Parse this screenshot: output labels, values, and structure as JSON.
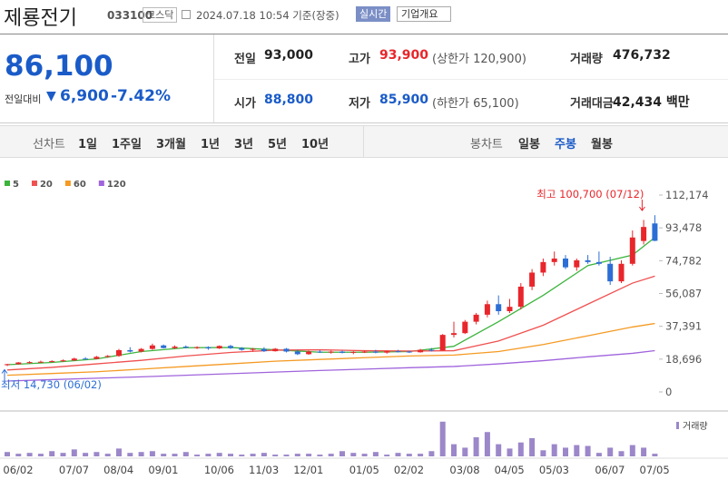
{
  "header": {
    "name": "제룡전기",
    "code": "033100",
    "market": "코스닥",
    "datetime": "2024.07.18 10:54 기준(장중)",
    "realtime": "실시간",
    "company": "기업개요"
  },
  "quote": {
    "price": "86,100",
    "change_label": "전일대비",
    "change": "6,900",
    "change_pct": "-7.42%",
    "rows": [
      [
        {
          "label": "전일",
          "value": "93,000"
        },
        {
          "label": "고가",
          "value": "93,900",
          "note": "(상한가 120,900)"
        },
        {
          "label": "거래량",
          "value": "476,732"
        }
      ],
      [
        {
          "label": "시가",
          "value": "88,800"
        },
        {
          "label": "저가",
          "value": "85,900",
          "note": "(하한가 65,100)"
        },
        {
          "label": "거래대금",
          "value": "42,434 백만"
        }
      ]
    ]
  },
  "nav": {
    "line_label": "선차트",
    "line_periods": [
      "1일",
      "1주일",
      "3개월",
      "1년",
      "3년",
      "5년",
      "10년"
    ],
    "candle_label": "봉차트",
    "candle_periods": [
      "일봉",
      "주봉",
      "월봉"
    ],
    "selected": "주봉"
  },
  "chart_data": {
    "type": "candlestick",
    "categories": [
      "06/02",
      null,
      null,
      null,
      null,
      "07/07",
      null,
      null,
      null,
      "08/04",
      null,
      null,
      null,
      "09/01",
      null,
      null,
      null,
      null,
      "10/06",
      null,
      null,
      null,
      "11/03",
      null,
      null,
      null,
      "12/01",
      null,
      null,
      null,
      null,
      "01/05",
      null,
      null,
      null,
      "02/02",
      null,
      null,
      null,
      null,
      "03/08",
      null,
      null,
      null,
      "04/05",
      null,
      null,
      null,
      "05/03",
      null,
      null,
      null,
      null,
      "06/07",
      null,
      null,
      null,
      "07/05",
      null
    ],
    "open": [
      15500,
      15800,
      16800,
      17000,
      17200,
      17600,
      18000,
      19000,
      18800,
      20000,
      20500,
      23800,
      23000,
      24500,
      26500,
      25000,
      25800,
      25200,
      25500,
      24800,
      26200,
      25000,
      24000,
      24500,
      23200,
      24600,
      23000,
      21500,
      23000,
      22500,
      23000,
      22300,
      22800,
      23000,
      22400,
      23200,
      23000,
      22600,
      24000,
      23600,
      32500,
      33500,
      40000,
      44000,
      50000,
      46000,
      48500,
      60000,
      68000,
      74000,
      76000,
      71000,
      75000,
      74000,
      73000,
      63000,
      73000,
      86000,
      96000
    ],
    "high": [
      16000,
      17000,
      17500,
      17800,
      18000,
      18500,
      19500,
      19800,
      20500,
      21000,
      24500,
      25500,
      25000,
      27500,
      27000,
      26500,
      26500,
      26000,
      26000,
      26500,
      26800,
      25500,
      25000,
      25500,
      25000,
      25000,
      24000,
      23500,
      23800,
      23500,
      23500,
      23200,
      23500,
      24000,
      23500,
      24000,
      23500,
      24500,
      25000,
      33000,
      40000,
      41000,
      45000,
      52000,
      55000,
      53000,
      62000,
      70000,
      76000,
      80000,
      78000,
      76000,
      78000,
      80000,
      77000,
      75000,
      92000,
      98000,
      100700
    ],
    "low": [
      14730,
      15600,
      16200,
      16600,
      16800,
      17200,
      17600,
      18500,
      18600,
      19500,
      20000,
      22500,
      22500,
      24000,
      24800,
      24500,
      24800,
      24500,
      24000,
      24500,
      24500,
      23500,
      23000,
      22800,
      23000,
      22500,
      21000,
      21200,
      22200,
      21800,
      22000,
      21500,
      22200,
      22000,
      21800,
      22500,
      22200,
      22400,
      23000,
      23500,
      31000,
      33000,
      38500,
      42500,
      44000,
      45000,
      47000,
      58000,
      66000,
      72000,
      70000,
      69000,
      73000,
      72000,
      61000,
      62000,
      72000,
      84000,
      85900
    ],
    "close": [
      15800,
      16800,
      17000,
      17200,
      17600,
      18000,
      19000,
      18800,
      20000,
      20500,
      23800,
      23000,
      24500,
      26500,
      25000,
      25800,
      25200,
      25500,
      24800,
      26200,
      25000,
      24000,
      24500,
      23200,
      24600,
      23000,
      21500,
      23000,
      22500,
      23000,
      22300,
      22800,
      23000,
      22400,
      23200,
      23000,
      22600,
      24000,
      23600,
      32500,
      33500,
      40000,
      44000,
      50000,
      46000,
      48500,
      60000,
      68000,
      74000,
      76000,
      71000,
      75000,
      74000,
      73000,
      63000,
      73000,
      88000,
      94000,
      86100
    ],
    "up_color": "#e8262b",
    "down_color": "#2c6ed5",
    "series": [
      {
        "name": "5",
        "color": "#3cb43c",
        "x": [
          0,
          4,
          8,
          12,
          16,
          20,
          24,
          28,
          32,
          36,
          40,
          44,
          48,
          52,
          56,
          58
        ],
        "values": [
          15500,
          16800,
          18800,
          23000,
          25200,
          25300,
          24000,
          22600,
          22600,
          23000,
          26000,
          40000,
          55000,
          72000,
          78000,
          88000
        ]
      },
      {
        "name": "20",
        "color": "#f05050",
        "x": [
          0,
          4,
          8,
          12,
          16,
          20,
          24,
          28,
          32,
          36,
          40,
          44,
          48,
          52,
          56,
          58
        ],
        "values": [
          12500,
          14000,
          16000,
          18000,
          20500,
          22500,
          23800,
          24000,
          23500,
          23300,
          23500,
          29000,
          38000,
          50000,
          62000,
          66000
        ]
      },
      {
        "name": "60",
        "color": "#f59a23",
        "x": [
          0,
          4,
          8,
          12,
          16,
          20,
          24,
          28,
          32,
          36,
          40,
          44,
          48,
          52,
          56,
          58
        ],
        "values": [
          9500,
          10500,
          11500,
          13000,
          14500,
          16000,
          17500,
          18500,
          19500,
          20500,
          21000,
          23000,
          27000,
          32000,
          37000,
          39000
        ]
      },
      {
        "name": "120",
        "color": "#a064dc",
        "x": [
          0,
          4,
          8,
          12,
          16,
          20,
          24,
          28,
          32,
          36,
          40,
          44,
          48,
          52,
          56,
          58
        ],
        "values": [
          6200,
          7000,
          7800,
          8600,
          9500,
          10400,
          11300,
          12200,
          13000,
          13800,
          14500,
          16000,
          17800,
          20000,
          22000,
          23500
        ]
      }
    ],
    "ylim": [
      0,
      112174
    ],
    "yticks": [
      0,
      {
        "value": 18696,
        "label": "18,696"
      },
      {
        "value": 37391,
        "label": "37,391"
      },
      {
        "value": 56087,
        "label": "56,087"
      },
      {
        "value": 74782,
        "label": "74,782"
      },
      {
        "value": 93478,
        "label": "93,478"
      },
      {
        "value": 112174,
        "label": "112,174"
      }
    ],
    "annotations": {
      "high": "최고 100,700 (07/12)",
      "low": "최저 14,730 (06/02)"
    },
    "volume": {
      "name": "거래량",
      "color": "#9b87c9",
      "values": [
        5,
        3,
        4,
        3,
        6,
        4,
        8,
        4,
        5,
        3,
        9,
        4,
        5,
        6,
        3,
        3,
        5,
        2,
        3,
        4,
        3,
        2,
        3,
        4,
        2,
        2,
        3,
        3,
        2,
        3,
        6,
        4,
        3,
        5,
        2,
        4,
        3,
        3,
        6,
        40,
        14,
        10,
        22,
        28,
        14,
        9,
        16,
        21,
        7,
        14,
        10,
        13,
        12,
        4,
        10,
        6,
        13,
        10,
        3
      ],
      "ylim": [
        0,
        45
      ]
    }
  }
}
